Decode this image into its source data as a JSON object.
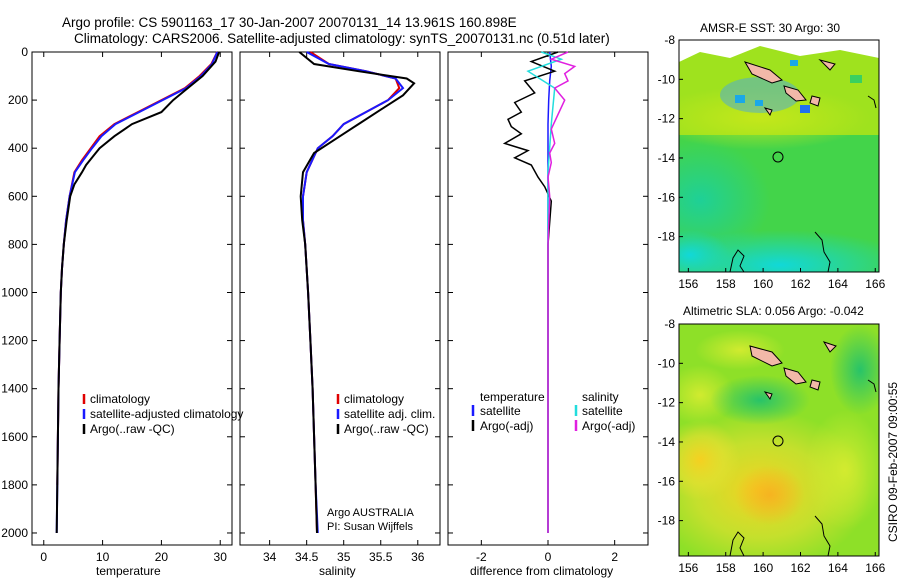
{
  "title": {
    "line1": "Argo profile: CS 5901163_17 30-Jan-2007 20070131_14 13.961S 160.898E",
    "line2": "Climatology: CARS2006. Satellite-adjusted climatology: synTS_20070131.nc (0.51d later)"
  },
  "colors": {
    "red": "#e00000",
    "blue": "#1a1aff",
    "black": "#000000",
    "cyan": "#22dddd",
    "magenta": "#e020e0",
    "land": "#f2b8a8"
  },
  "chart_data": [
    {
      "type": "line",
      "id": "temperature",
      "xlabel": "temperature",
      "xlim": [
        -2,
        32
      ],
      "ylim": [
        0,
        2050
      ],
      "y_reversed": true,
      "xticks": [
        0,
        10,
        20,
        30
      ],
      "yticks": [
        0,
        200,
        400,
        600,
        800,
        1000,
        1200,
        1400,
        1600,
        1800,
        2000
      ],
      "legend": [
        "climatology",
        "satellite-adjusted climatology",
        "Argo(..raw -QC)"
      ],
      "series": [
        {
          "name": "climatology",
          "color": "red",
          "x": [
            29.5,
            28.5,
            26.5,
            24,
            20,
            16,
            12,
            9.5,
            8,
            6.5,
            5.2,
            4.4,
            3.8,
            3.4,
            3.1,
            2.9,
            2.7,
            2.5,
            2.4,
            2.3
          ],
          "y": [
            0,
            50,
            100,
            150,
            200,
            250,
            300,
            350,
            400,
            450,
            500,
            600,
            700,
            800,
            900,
            1000,
            1200,
            1400,
            1600,
            1800
          ]
        },
        {
          "name": "satellite-adjusted climatology",
          "color": "blue",
          "x": [
            29.5,
            28.6,
            26.7,
            24.2,
            20.2,
            16.2,
            12.2,
            9.8,
            8.2,
            6.7,
            5.3,
            4.4,
            3.8,
            3.4,
            3.1,
            2.9,
            2.7,
            2.5,
            2.4,
            2.3,
            2.2
          ],
          "y": [
            0,
            50,
            100,
            150,
            200,
            250,
            300,
            350,
            400,
            450,
            500,
            600,
            700,
            800,
            900,
            1000,
            1200,
            1400,
            1600,
            1800,
            2000
          ]
        },
        {
          "name": "Argo(..raw -QC)",
          "color": "black",
          "x": [
            29.8,
            29.2,
            27,
            24,
            22,
            20,
            15,
            12,
            9.5,
            8.5,
            7.2,
            6.5,
            5.2,
            4.5,
            3.9,
            3.4,
            3.1,
            2.9,
            2.7,
            2.5,
            2.4,
            2.3,
            2.2
          ],
          "y": [
            0,
            40,
            100,
            160,
            200,
            250,
            300,
            350,
            400,
            430,
            470,
            500,
            550,
            600,
            700,
            800,
            900,
            1000,
            1200,
            1400,
            1600,
            1800,
            2000
          ]
        }
      ]
    },
    {
      "type": "line",
      "id": "salinity",
      "xlabel": "salinity",
      "xlim": [
        33.6,
        36.3
      ],
      "ylim": [
        0,
        2050
      ],
      "y_reversed": true,
      "xticks": [
        34,
        34.5,
        35,
        35.5,
        36
      ],
      "legend": [
        "climatology",
        "satellite adj. clim.",
        "Argo(..raw -QC)"
      ],
      "annotation": [
        "Argo AUSTRALIA",
        "PI: Susan Wijffels"
      ],
      "series": [
        {
          "name": "climatology",
          "color": "red",
          "x": [
            34.55,
            34.8,
            35.3,
            35.7,
            35.75,
            35.6,
            35.3,
            35.0,
            34.85,
            34.65,
            34.5,
            34.45,
            34.45,
            34.48,
            34.52,
            34.55,
            34.58,
            34.6,
            34.62,
            34.64
          ],
          "y": [
            0,
            50,
            80,
            110,
            150,
            200,
            250,
            300,
            350,
            400,
            500,
            600,
            700,
            800,
            1000,
            1200,
            1400,
            1600,
            1800,
            2000
          ]
        },
        {
          "name": "satellite adj. clim.",
          "color": "blue",
          "x": [
            34.5,
            34.8,
            35.3,
            35.7,
            35.8,
            35.6,
            35.3,
            35.0,
            34.85,
            34.65,
            34.5,
            34.45,
            34.45,
            34.48,
            34.52,
            34.55,
            34.58,
            34.6,
            34.62,
            34.65
          ],
          "y": [
            0,
            50,
            80,
            110,
            150,
            200,
            250,
            300,
            350,
            400,
            500,
            600,
            700,
            800,
            1000,
            1200,
            1400,
            1600,
            1800,
            2000
          ]
        },
        {
          "name": "Argo(..raw -QC)",
          "color": "black",
          "x": [
            34.4,
            34.6,
            35.2,
            35.85,
            35.95,
            35.8,
            35.5,
            35.2,
            34.9,
            34.6,
            34.45,
            34.42,
            34.44,
            34.48,
            34.52,
            34.55,
            34.58,
            34.6,
            34.62,
            34.64
          ],
          "y": [
            0,
            50,
            80,
            110,
            130,
            180,
            240,
            300,
            360,
            420,
            500,
            600,
            700,
            800,
            1000,
            1200,
            1400,
            1600,
            1800,
            2000
          ]
        }
      ]
    },
    {
      "type": "line",
      "id": "difference",
      "xlabel": "difference from climatology",
      "xlim": [
        -3,
        3
      ],
      "ylim": [
        0,
        2050
      ],
      "y_reversed": true,
      "xticks": [
        -2,
        0,
        2
      ],
      "legend_left": {
        "heading": "temperature",
        "items": [
          "satellite",
          "Argo(-adj)"
        ]
      },
      "legend_right": {
        "heading": "salinity",
        "items": [
          "satellite",
          "Argo(-adj)"
        ]
      },
      "series": [
        {
          "name": "temperature satellite",
          "color": "blue",
          "x": [
            0.05,
            0.1,
            0.05,
            0.02,
            0,
            0,
            0,
            0,
            0,
            0
          ],
          "y": [
            0,
            60,
            120,
            200,
            300,
            500,
            800,
            1200,
            1600,
            2000
          ]
        },
        {
          "name": "temperature Argo(-adj)",
          "color": "black",
          "x": [
            0.3,
            -0.5,
            0.2,
            -0.7,
            -0.4,
            -1.0,
            -0.8,
            -1.2,
            -1.1,
            -0.8,
            -1.3,
            -0.6,
            -1.0,
            -0.5,
            -0.3,
            -0.1,
            0.1,
            0,
            0,
            0
          ],
          "y": [
            0,
            40,
            80,
            120,
            170,
            210,
            250,
            280,
            310,
            340,
            380,
            410,
            440,
            470,
            520,
            560,
            620,
            800,
            1200,
            2000
          ]
        },
        {
          "name": "salinity satellite",
          "color": "cyan",
          "x": [
            -0.2,
            0.4,
            -0.6,
            0.2,
            0.1,
            0,
            0,
            0,
            0,
            0,
            0
          ],
          "y": [
            0,
            30,
            80,
            150,
            300,
            500,
            800,
            1000,
            1400,
            1800,
            2000
          ]
        },
        {
          "name": "salinity Argo(-adj)",
          "color": "magenta",
          "x": [
            0.6,
            0.1,
            0.8,
            0.5,
            0.6,
            0.2,
            0.5,
            0.3,
            0.1,
            0.2,
            0.05,
            0.1,
            0,
            0.05,
            0,
            0
          ],
          "y": [
            0,
            30,
            60,
            90,
            120,
            150,
            200,
            260,
            320,
            380,
            420,
            460,
            520,
            600,
            800,
            2000
          ]
        }
      ]
    },
    {
      "type": "heatmap",
      "id": "sst-map",
      "title": "AMSR-E SST: 30 Argo: 30",
      "xlim": [
        155.5,
        166.2
      ],
      "ylim": [
        -19.8,
        -8
      ],
      "xticks": [
        156,
        158,
        160,
        162,
        164,
        166
      ],
      "yticks": [
        -8,
        -10,
        -12,
        -14,
        -16,
        -18
      ],
      "argo_position": {
        "lon": 160.898,
        "lat": -13.961
      }
    },
    {
      "type": "heatmap",
      "id": "sla-map",
      "title": "Altimetric SLA: 0.056 Argo: -0.042",
      "xlim": [
        155.5,
        166.2
      ],
      "ylim": [
        -19.8,
        -8
      ],
      "xticks": [
        156,
        158,
        160,
        162,
        164,
        166
      ],
      "yticks": [
        -8,
        -10,
        -12,
        -14,
        -16,
        -18
      ],
      "argo_position": {
        "lon": 160.898,
        "lat": -13.961
      }
    }
  ],
  "footer": "CSIRO 09-Feb-2007 09:00:55"
}
